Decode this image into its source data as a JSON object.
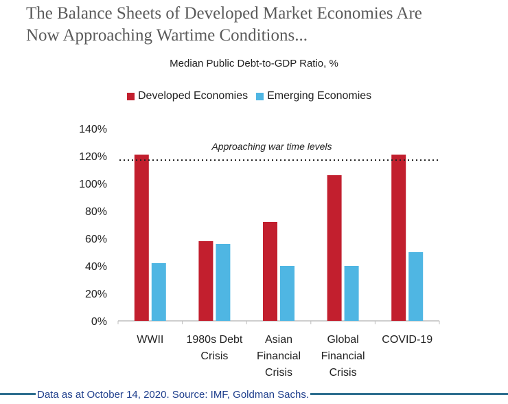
{
  "header": {
    "title_line1": "The Balance Sheets of Developed Market Economies Are",
    "title_line2": "Now Approaching Wartime Conditions..."
  },
  "chart_data": {
    "type": "bar",
    "title": "Median Public Debt-to-GDP Ratio, %",
    "categories": [
      [
        "WWII"
      ],
      [
        "1980s Debt",
        "Crisis"
      ],
      [
        "Asian",
        "Financial",
        "Crisis"
      ],
      [
        "Global",
        "Financial",
        "Crisis"
      ],
      [
        "COVID-19"
      ]
    ],
    "series": [
      {
        "name": "Developed Economies",
        "color": "#c21f2e",
        "values": [
          121,
          58,
          72,
          106,
          121
        ]
      },
      {
        "name": "Emerging Economies",
        "color": "#4fb6e3",
        "values": [
          42,
          56,
          40,
          40,
          50
        ]
      }
    ],
    "ylim": [
      0,
      140
    ],
    "yticks": [
      0,
      20,
      40,
      60,
      80,
      100,
      120,
      140
    ],
    "ytick_labels": [
      "0%",
      "20%",
      "40%",
      "60%",
      "80%",
      "100%",
      "120%",
      "140%"
    ],
    "reference_line": {
      "value": 117,
      "label": "Approaching war time levels"
    },
    "xlabel": "",
    "ylabel": ""
  },
  "footer": {
    "source": "Data as at October 14, 2020. Source: IMF, Goldman Sachs."
  }
}
